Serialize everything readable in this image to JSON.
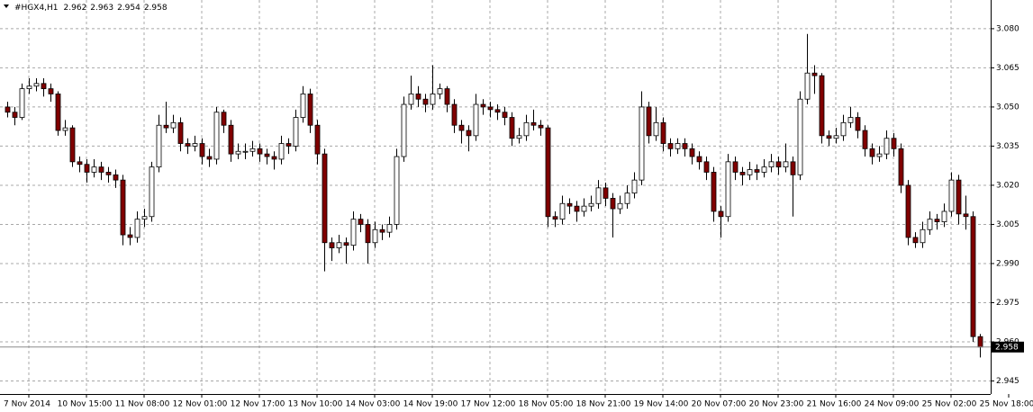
{
  "chart_data": {
    "type": "candlestick",
    "title": "#HGX4,H1",
    "ylim": [
      2.94,
      3.091
    ],
    "xlim": [
      -1,
      136.5
    ],
    "yticks": [
      {
        "value": 3.08,
        "label": "3.080"
      },
      3.065,
      {
        "value": 3.05,
        "label": "3.050"
      },
      3.035,
      {
        "value": 3.02,
        "label": "3.020"
      },
      3.005,
      {
        "value": 2.99,
        "label": "2.990"
      },
      2.975,
      {
        "value": 2.96,
        "label": "2.960"
      },
      2.945
    ],
    "xticks": [
      {
        "value": 3,
        "label": "7 Nov 2014"
      },
      {
        "value": 11,
        "label": "10 Nov 15:00"
      },
      {
        "value": 19,
        "label": "11 Nov 08:00"
      },
      {
        "value": 27,
        "label": "12 Nov 01:00"
      },
      {
        "value": 35,
        "label": "12 Nov 17:00"
      },
      {
        "value": 43,
        "label": "13 Nov 10:00"
      },
      {
        "value": 51,
        "label": "14 Nov 03:00"
      },
      {
        "value": 59,
        "label": "14 Nov 19:00"
      },
      {
        "value": 67,
        "label": "17 Nov 12:00"
      },
      {
        "value": 75,
        "label": "18 Nov 05:00"
      },
      {
        "value": 83,
        "label": "18 Nov 21:00"
      },
      {
        "value": 91,
        "label": "19 Nov 14:00"
      },
      {
        "value": 99,
        "label": "20 Nov 07:00"
      },
      {
        "value": 107,
        "label": "20 Nov 23:00"
      },
      {
        "value": 115,
        "label": "21 Nov 16:00"
      },
      {
        "value": 123,
        "label": "24 Nov 09:00"
      },
      {
        "value": 131,
        "label": "25 Nov 02:00"
      },
      {
        "value": 139,
        "label": "25 Nov 18:00"
      }
    ],
    "grid": true,
    "up_color": "#ffffff",
    "down_color": "#800000",
    "wick_color": "#000000",
    "ohlc": [
      [
        3.05,
        3.052,
        3.046,
        3.048
      ],
      [
        3.048,
        3.05,
        3.043,
        3.046
      ],
      [
        3.046,
        3.059,
        3.045,
        3.057
      ],
      [
        3.057,
        3.061,
        3.055,
        3.058
      ],
      [
        3.058,
        3.061,
        3.056,
        3.059
      ],
      [
        3.059,
        3.061,
        3.054,
        3.057
      ],
      [
        3.057,
        3.059,
        3.052,
        3.055
      ],
      [
        3.055,
        3.056,
        3.039,
        3.041
      ],
      [
        3.041,
        3.045,
        3.039,
        3.042
      ],
      [
        3.042,
        3.043,
        3.027,
        3.029
      ],
      [
        3.029,
        3.031,
        3.025,
        3.028
      ],
      [
        3.028,
        3.03,
        3.021,
        3.025
      ],
      [
        3.025,
        3.03,
        3.023,
        3.027
      ],
      [
        3.027,
        3.029,
        3.022,
        3.025
      ],
      [
        3.025,
        3.027,
        3.021,
        3.024
      ],
      [
        3.024,
        3.026,
        3.019,
        3.022
      ],
      [
        3.022,
        3.024,
        2.997,
        3.001
      ],
      [
        3.001,
        3.004,
        2.997,
        3.0
      ],
      [
        3.0,
        3.01,
        2.998,
        3.007
      ],
      [
        3.007,
        3.011,
        3.004,
        3.008
      ],
      [
        3.008,
        3.029,
        3.006,
        3.027
      ],
      [
        3.027,
        3.047,
        3.025,
        3.043
      ],
      [
        3.043,
        3.052,
        3.04,
        3.042
      ],
      [
        3.042,
        3.047,
        3.04,
        3.044
      ],
      [
        3.044,
        3.046,
        3.033,
        3.036
      ],
      [
        3.036,
        3.038,
        3.032,
        3.035
      ],
      [
        3.035,
        3.039,
        3.033,
        3.036
      ],
      [
        3.036,
        3.038,
        3.028,
        3.031
      ],
      [
        3.031,
        3.034,
        3.027,
        3.03
      ],
      [
        3.03,
        3.05,
        3.028,
        3.048
      ],
      [
        3.048,
        3.049,
        3.04,
        3.043
      ],
      [
        3.043,
        3.045,
        3.029,
        3.032
      ],
      [
        3.032,
        3.036,
        3.03,
        3.033
      ],
      [
        3.033,
        3.036,
        3.03,
        3.033
      ],
      [
        3.033,
        3.037,
        3.031,
        3.034
      ],
      [
        3.034,
        3.036,
        3.029,
        3.032
      ],
      [
        3.032,
        3.034,
        3.028,
        3.031
      ],
      [
        3.031,
        3.033,
        3.026,
        3.03
      ],
      [
        3.03,
        3.039,
        3.028,
        3.036
      ],
      [
        3.036,
        3.038,
        3.032,
        3.035
      ],
      [
        3.035,
        3.049,
        3.033,
        3.046
      ],
      [
        3.046,
        3.058,
        3.044,
        3.055
      ],
      [
        3.055,
        3.057,
        3.04,
        3.043
      ],
      [
        3.043,
        3.045,
        3.028,
        3.032
      ],
      [
        3.032,
        3.034,
        2.987,
        2.998
      ],
      [
        2.998,
        3.0,
        2.991,
        2.996
      ],
      [
        2.996,
        3.001,
        2.994,
        2.998
      ],
      [
        2.998,
        3.0,
        2.99,
        2.997
      ],
      [
        2.997,
        3.01,
        2.995,
        3.007
      ],
      [
        3.007,
        3.009,
        3.002,
        3.005
      ],
      [
        3.005,
        3.007,
        2.99,
        2.998
      ],
      [
        2.998,
        3.006,
        2.996,
        3.003
      ],
      [
        3.003,
        3.005,
        2.999,
        3.002
      ],
      [
        3.002,
        3.008,
        3.0,
        3.005
      ],
      [
        3.005,
        3.034,
        3.003,
        3.031
      ],
      [
        3.031,
        3.054,
        3.029,
        3.051
      ],
      [
        3.051,
        3.062,
        3.049,
        3.055
      ],
      [
        3.055,
        3.058,
        3.05,
        3.053
      ],
      [
        3.053,
        3.055,
        3.048,
        3.051
      ],
      [
        3.051,
        3.066,
        3.049,
        3.055
      ],
      [
        3.055,
        3.059,
        3.053,
        3.057
      ],
      [
        3.057,
        3.058,
        3.048,
        3.051
      ],
      [
        3.051,
        3.053,
        3.04,
        3.043
      ],
      [
        3.043,
        3.045,
        3.036,
        3.041
      ],
      [
        3.041,
        3.043,
        3.033,
        3.039
      ],
      [
        3.039,
        3.055,
        3.037,
        3.051
      ],
      [
        3.051,
        3.053,
        3.047,
        3.05
      ],
      [
        3.05,
        3.052,
        3.046,
        3.049
      ],
      [
        3.049,
        3.051,
        3.045,
        3.048
      ],
      [
        3.048,
        3.05,
        3.043,
        3.046
      ],
      [
        3.046,
        3.048,
        3.035,
        3.038
      ],
      [
        3.038,
        3.042,
        3.036,
        3.039
      ],
      [
        3.039,
        3.047,
        3.037,
        3.044
      ],
      [
        3.044,
        3.049,
        3.041,
        3.043
      ],
      [
        3.043,
        3.045,
        3.039,
        3.042
      ],
      [
        3.042,
        3.043,
        3.004,
        3.008
      ],
      [
        3.008,
        3.01,
        3.004,
        3.007
      ],
      [
        3.007,
        3.016,
        3.005,
        3.013
      ],
      [
        3.013,
        3.015,
        3.009,
        3.012
      ],
      [
        3.012,
        3.014,
        3.006,
        3.01
      ],
      [
        3.01,
        3.015,
        3.008,
        3.012
      ],
      [
        3.012,
        3.016,
        3.01,
        3.013
      ],
      [
        3.013,
        3.022,
        3.011,
        3.019
      ],
      [
        3.019,
        3.021,
        3.012,
        3.015
      ],
      [
        3.015,
        3.017,
        3.0,
        3.011
      ],
      [
        3.011,
        3.016,
        3.009,
        3.013
      ],
      [
        3.013,
        3.02,
        3.011,
        3.017
      ],
      [
        3.017,
        3.025,
        3.015,
        3.022
      ],
      [
        3.022,
        3.056,
        3.02,
        3.05
      ],
      [
        3.05,
        3.052,
        3.036,
        3.039
      ],
      [
        3.039,
        3.05,
        3.037,
        3.044
      ],
      [
        3.044,
        3.046,
        3.033,
        3.036
      ],
      [
        3.036,
        3.038,
        3.031,
        3.034
      ],
      [
        3.034,
        3.038,
        3.032,
        3.036
      ],
      [
        3.036,
        3.038,
        3.031,
        3.034
      ],
      [
        3.034,
        3.036,
        3.028,
        3.031
      ],
      [
        3.031,
        3.033,
        3.026,
        3.029
      ],
      [
        3.029,
        3.031,
        3.022,
        3.025
      ],
      [
        3.025,
        3.027,
        3.006,
        3.01
      ],
      [
        3.01,
        3.012,
        3.0,
        3.008
      ],
      [
        3.008,
        3.032,
        3.006,
        3.029
      ],
      [
        3.029,
        3.031,
        3.022,
        3.025
      ],
      [
        3.025,
        3.027,
        3.02,
        3.024
      ],
      [
        3.024,
        3.029,
        3.022,
        3.026
      ],
      [
        3.026,
        3.028,
        3.022,
        3.025
      ],
      [
        3.025,
        3.03,
        3.023,
        3.027
      ],
      [
        3.027,
        3.032,
        3.025,
        3.029
      ],
      [
        3.029,
        3.031,
        3.024,
        3.027
      ],
      [
        3.027,
        3.036,
        3.025,
        3.029
      ],
      [
        3.029,
        3.031,
        3.008,
        3.024
      ],
      [
        3.024,
        3.056,
        3.022,
        3.053
      ],
      [
        3.053,
        3.078,
        3.051,
        3.063
      ],
      [
        3.063,
        3.066,
        3.055,
        3.062
      ],
      [
        3.062,
        3.063,
        3.036,
        3.039
      ],
      [
        3.039,
        3.041,
        3.035,
        3.038
      ],
      [
        3.038,
        3.042,
        3.036,
        3.039
      ],
      [
        3.039,
        3.047,
        3.037,
        3.044
      ],
      [
        3.044,
        3.05,
        3.042,
        3.046
      ],
      [
        3.046,
        3.048,
        3.038,
        3.041
      ],
      [
        3.041,
        3.043,
        3.031,
        3.034
      ],
      [
        3.034,
        3.036,
        3.028,
        3.031
      ],
      [
        3.031,
        3.035,
        3.029,
        3.032
      ],
      [
        3.032,
        3.041,
        3.03,
        3.038
      ],
      [
        3.038,
        3.04,
        3.031,
        3.034
      ],
      [
        3.034,
        3.036,
        3.017,
        3.02
      ],
      [
        3.02,
        3.022,
        2.997,
        3.0
      ],
      [
        3.0,
        3.002,
        2.996,
        2.998
      ],
      [
        2.998,
        3.006,
        2.996,
        3.003
      ],
      [
        3.003,
        3.01,
        3.001,
        3.007
      ],
      [
        3.007,
        3.009,
        3.003,
        3.006
      ],
      [
        3.006,
        3.013,
        3.004,
        3.01
      ],
      [
        3.01,
        3.025,
        3.008,
        3.022
      ],
      [
        3.022,
        3.024,
        3.005,
        3.009
      ],
      [
        3.009,
        3.016,
        3.003,
        3.008
      ],
      [
        3.008,
        3.01,
        2.96,
        2.962
      ],
      [
        2.962,
        2.963,
        2.954,
        2.958
      ]
    ]
  }
}
